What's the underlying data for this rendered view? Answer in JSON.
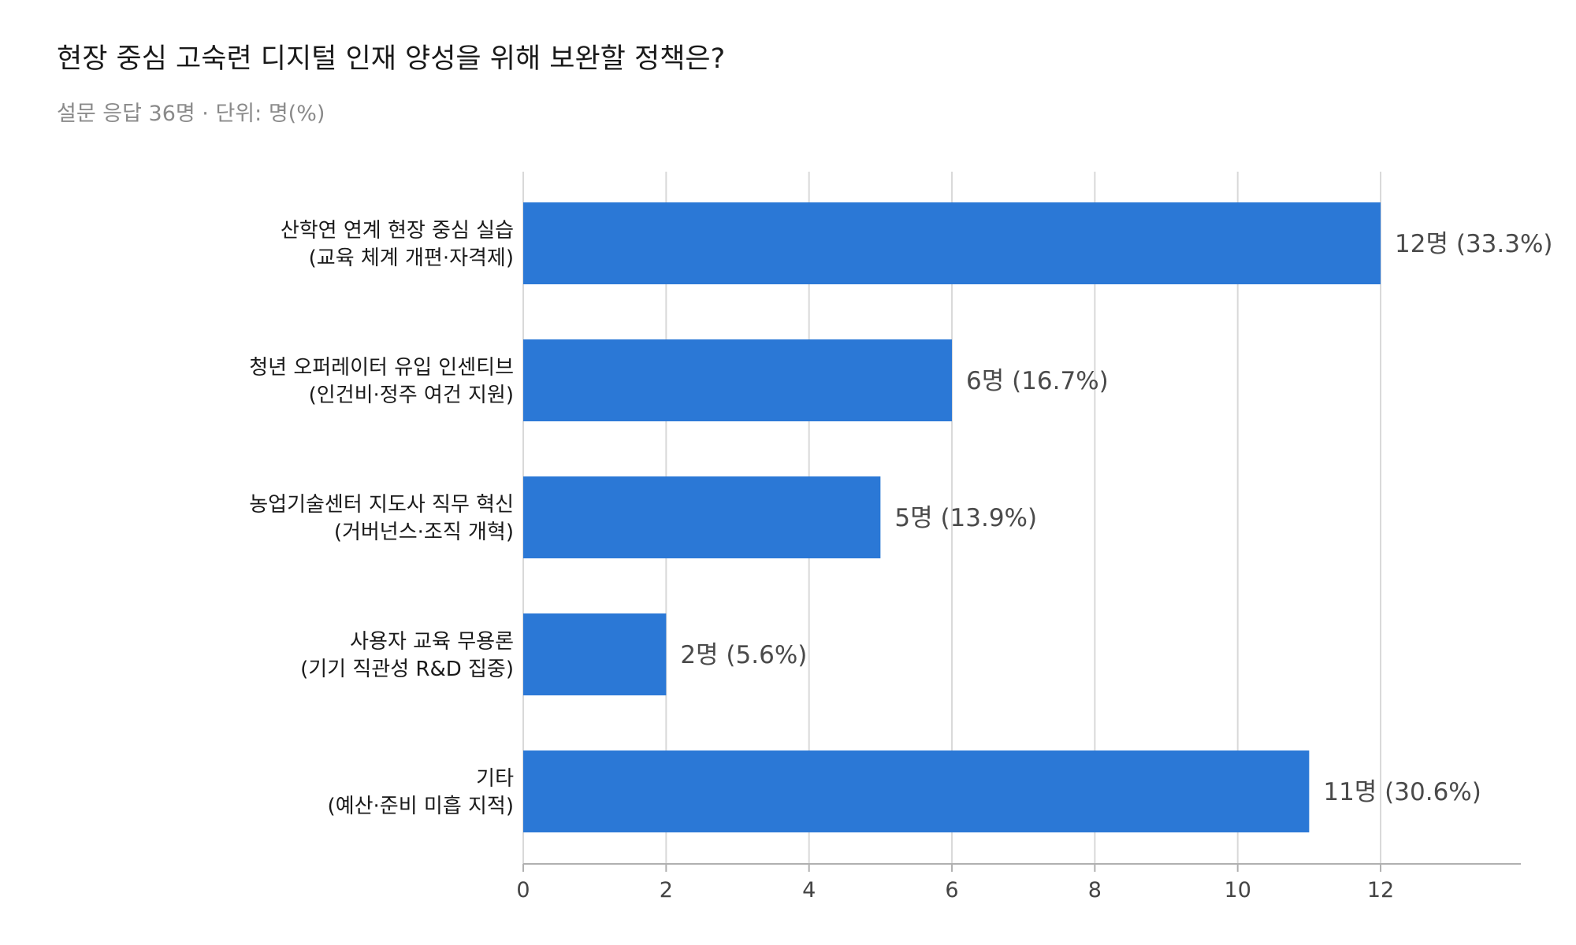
{
  "header": {
    "title": "현장 중심 고숙련 디지털 인재 양성을 위해 보완할 정책은?",
    "subtitle": "설문 응답 36명 · 단위: 명(%)"
  },
  "chart_data": {
    "type": "bar",
    "orientation": "horizontal",
    "title": "현장 중심 고숙련 디지털 인재 양성을 위해 보완할 정책은?",
    "subtitle": "설문 응답 36명 · 단위: 명(%)",
    "categories": [
      [
        "산학연 연계 현장 중심 실습",
        "(교육 체계 개편·자격제)"
      ],
      [
        "청년 오퍼레이터 유입 인센티브",
        "(인건비·정주 여건 지원)"
      ],
      [
        "농업기술센터 지도사 직무 혁신",
        "(거버넌스·조직 개혁)"
      ],
      [
        "사용자 교육 무용론",
        "(기기 직관성 R&D 집중)"
      ],
      [
        "기타",
        "(예산·준비 미흡 지적)"
      ]
    ],
    "values": [
      12,
      6,
      5,
      2,
      11
    ],
    "value_labels": [
      "12명 (33.3%)",
      "6명 (16.7%)",
      "5명 (13.9%)",
      "2명 (5.6%)",
      "11명 (30.6%)"
    ],
    "xlim": [
      0,
      14
    ],
    "xticks": [
      0,
      2,
      4,
      6,
      8,
      10,
      12
    ],
    "xlabel": "",
    "ylabel": "",
    "grid": true,
    "legend": false,
    "bar_color": "#2b78d6",
    "grid_color": "#d9d9d9",
    "axis_color": "#b0b0b0"
  }
}
